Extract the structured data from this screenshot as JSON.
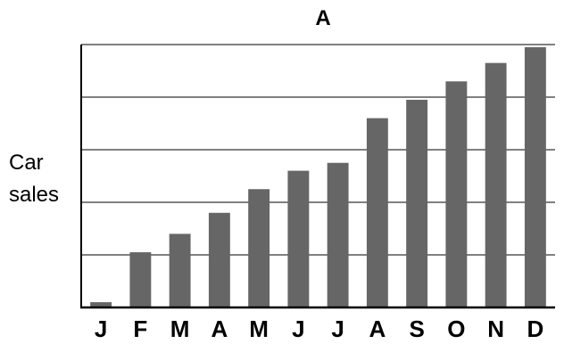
{
  "chart_data": {
    "type": "bar",
    "title": "A",
    "xlabel": "",
    "ylabel": "Car sales",
    "ylabel_lines": [
      "Car",
      "sales"
    ],
    "categories": [
      "J",
      "F",
      "M",
      "A",
      "M",
      "J",
      "J",
      "A",
      "S",
      "O",
      "N",
      "D"
    ],
    "values": [
      1,
      10.5,
      14,
      18,
      22.5,
      26,
      27.5,
      36,
      39.5,
      43,
      46.5,
      49.5
    ],
    "ylim": [
      0,
      50
    ],
    "yticks": [
      0,
      10,
      20,
      30,
      40,
      50
    ],
    "ytick_labels_shown": false,
    "grid": "horizontal",
    "legend": "none",
    "bar_color": "#666666",
    "grid_color": "#000000",
    "axis_color": "#000000"
  }
}
